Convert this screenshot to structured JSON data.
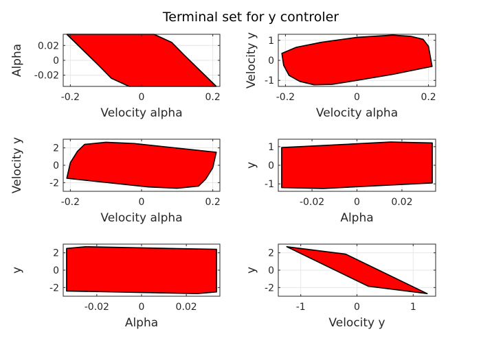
{
  "figure": {
    "title": "Terminal set for y controler",
    "fill_color": "#ff0000",
    "edge_color": "#000000"
  },
  "chart_data": [
    {
      "type": "area",
      "xlabel": "Velocity alpha",
      "ylabel": "Alpha",
      "xlim": [
        -0.22,
        0.22
      ],
      "ylim": [
        -0.035,
        0.035
      ],
      "xticks": [
        -0.2,
        0,
        0.2
      ],
      "xtick_labels": [
        "-0.2",
        "0",
        "0.2"
      ],
      "yticks": [
        -0.02,
        0,
        0.02
      ],
      "ytick_labels": [
        "-0.02",
        "0",
        "0.02"
      ],
      "grid": true,
      "polygon": [
        [
          -0.21,
          0.035
        ],
        [
          0.035,
          0.035
        ],
        [
          0.085,
          0.024
        ],
        [
          0.12,
          0.007
        ],
        [
          0.21,
          -0.035
        ],
        [
          -0.035,
          -0.035
        ],
        [
          -0.085,
          -0.024
        ],
        [
          -0.12,
          -0.007
        ]
      ]
    },
    {
      "type": "area",
      "xlabel": "Velocity alpha",
      "ylabel": "Velocity y",
      "xlim": [
        -0.22,
        0.22
      ],
      "ylim": [
        -1.3,
        1.3
      ],
      "xticks": [
        -0.2,
        0,
        0.2
      ],
      "xtick_labels": [
        "-0.2",
        "0",
        "0.2"
      ],
      "yticks": [
        -1,
        0,
        1
      ],
      "ytick_labels": [
        "-1",
        "0",
        "1"
      ],
      "grid": true,
      "polygon": [
        [
          -0.21,
          0.35
        ],
        [
          -0.17,
          0.65
        ],
        [
          -0.1,
          0.9
        ],
        [
          0,
          1.15
        ],
        [
          0.1,
          1.26
        ],
        [
          0.15,
          1.2
        ],
        [
          0.185,
          1.05
        ],
        [
          0.2,
          0.7
        ],
        [
          0.21,
          -0.3
        ],
        [
          0.1,
          -0.7
        ],
        [
          0,
          -1.0
        ],
        [
          -0.07,
          -1.2
        ],
        [
          -0.12,
          -1.22
        ],
        [
          -0.16,
          -1.05
        ],
        [
          -0.19,
          -0.75
        ],
        [
          -0.205,
          -0.25
        ]
      ]
    },
    {
      "type": "area",
      "xlabel": "Velocity alpha",
      "ylabel": "Velocity y",
      "xlim": [
        -0.22,
        0.22
      ],
      "ylim": [
        -3,
        3
      ],
      "xticks": [
        -0.2,
        0,
        0.2
      ],
      "xtick_labels": [
        "-0.2",
        "0",
        "0.2"
      ],
      "yticks": [
        -2,
        0,
        2
      ],
      "ytick_labels": [
        "-2",
        "0",
        "2"
      ],
      "grid": true,
      "polygon": [
        [
          -0.21,
          -1.5
        ],
        [
          -0.2,
          0.3
        ],
        [
          -0.18,
          1.6
        ],
        [
          -0.16,
          2.4
        ],
        [
          -0.1,
          2.65
        ],
        [
          -0.02,
          2.5
        ],
        [
          0.21,
          1.5
        ],
        [
          0.2,
          -0.3
        ],
        [
          0.18,
          -1.6
        ],
        [
          0.16,
          -2.4
        ],
        [
          0.1,
          -2.65
        ],
        [
          0.02,
          -2.5
        ]
      ]
    },
    {
      "type": "area",
      "xlabel": "Alpha",
      "ylabel": "y",
      "xlim": [
        -0.035,
        0.035
      ],
      "ylim": [
        -1.4,
        1.4
      ],
      "xticks": [
        -0.02,
        0,
        0.02
      ],
      "xtick_labels": [
        "-0.02",
        "0",
        "0.02"
      ],
      "yticks": [
        -1,
        0,
        1
      ],
      "ytick_labels": [
        "-1",
        "0",
        "1"
      ],
      "grid": true,
      "polygon": [
        [
          -0.0335,
          0.95
        ],
        [
          -0.0335,
          -1.2
        ],
        [
          -0.015,
          -1.25
        ],
        [
          0.0335,
          -0.95
        ],
        [
          0.0335,
          1.2
        ],
        [
          0.015,
          1.25
        ]
      ]
    },
    {
      "type": "area",
      "xlabel": "Alpha",
      "ylabel": "y",
      "xlim": [
        -0.035,
        0.035
      ],
      "ylim": [
        -3,
        3
      ],
      "xticks": [
        -0.02,
        0,
        0.02
      ],
      "xtick_labels": [
        "-0.02",
        "0",
        "0.02"
      ],
      "yticks": [
        -2,
        0,
        2
      ],
      "ytick_labels": [
        "-2",
        "0",
        "2"
      ],
      "grid": true,
      "polygon": [
        [
          -0.0335,
          2.5
        ],
        [
          -0.025,
          2.7
        ],
        [
          0.0335,
          2.4
        ],
        [
          0.0335,
          -2.5
        ],
        [
          0.025,
          -2.7
        ],
        [
          -0.0335,
          -2.4
        ]
      ]
    },
    {
      "type": "area",
      "xlabel": "Velocity y",
      "ylabel": "y",
      "xlim": [
        -1.4,
        1.4
      ],
      "ylim": [
        -3,
        3
      ],
      "xticks": [
        -1,
        0,
        1
      ],
      "xtick_labels": [
        "-1",
        "0",
        "1"
      ],
      "yticks": [
        -2,
        0,
        2
      ],
      "ytick_labels": [
        "-2",
        "0",
        "2"
      ],
      "grid": true,
      "polygon": [
        [
          -1.25,
          2.7
        ],
        [
          -0.2,
          1.85
        ],
        [
          1.25,
          -2.7
        ],
        [
          0.2,
          -1.85
        ]
      ]
    }
  ]
}
